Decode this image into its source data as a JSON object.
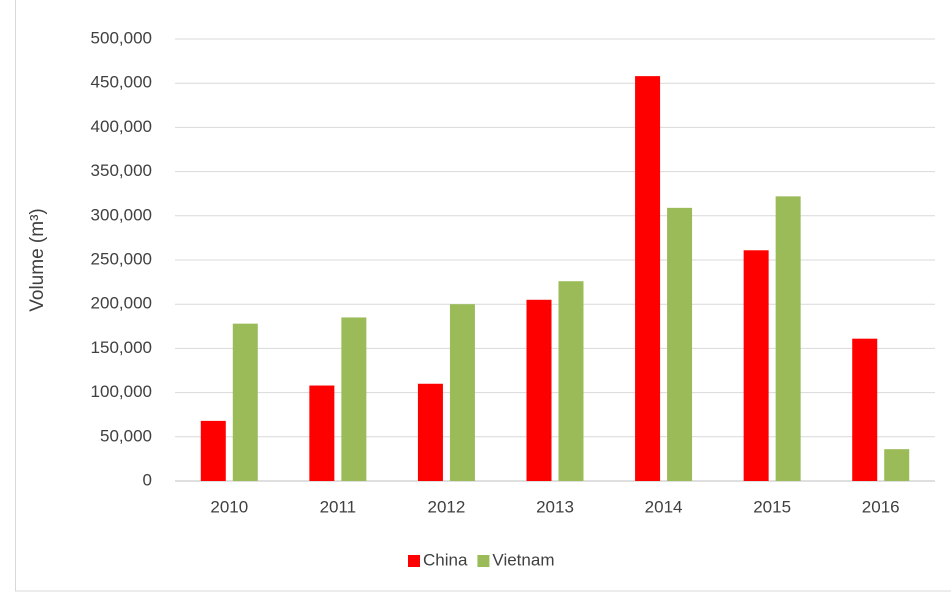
{
  "chart_data": {
    "type": "bar",
    "y_label": "Volume (m³)",
    "categories": [
      "2010",
      "2011",
      "2012",
      "2013",
      "2014",
      "2015",
      "2016"
    ],
    "series": [
      {
        "name": "China",
        "color": "#ff0000",
        "values": [
          68000,
          108000,
          110000,
          205000,
          458000,
          261000,
          161000
        ]
      },
      {
        "name": "Vietnam",
        "color": "#9bbb59",
        "values": [
          178000,
          185000,
          200000,
          226000,
          309000,
          322000,
          36000
        ]
      }
    ],
    "ylim": [
      0,
      500000
    ],
    "yticks": [
      0,
      {
        "value": 50000,
        "label": "50,000"
      },
      {
        "value": 100000,
        "label": "100,000"
      },
      {
        "value": 150000,
        "label": "150,000"
      },
      {
        "value": 200000,
        "label": "200,000"
      },
      {
        "value": 250000,
        "label": "250,000"
      },
      {
        "value": 300000,
        "label": "300,000"
      },
      {
        "value": 350000,
        "label": "350,000"
      },
      {
        "value": 400000,
        "label": "400,000"
      },
      {
        "value": 450000,
        "label": "450,000"
      },
      {
        "value": 500000,
        "label": "500,000"
      }
    ],
    "grid": true,
    "legend": "bottom"
  }
}
